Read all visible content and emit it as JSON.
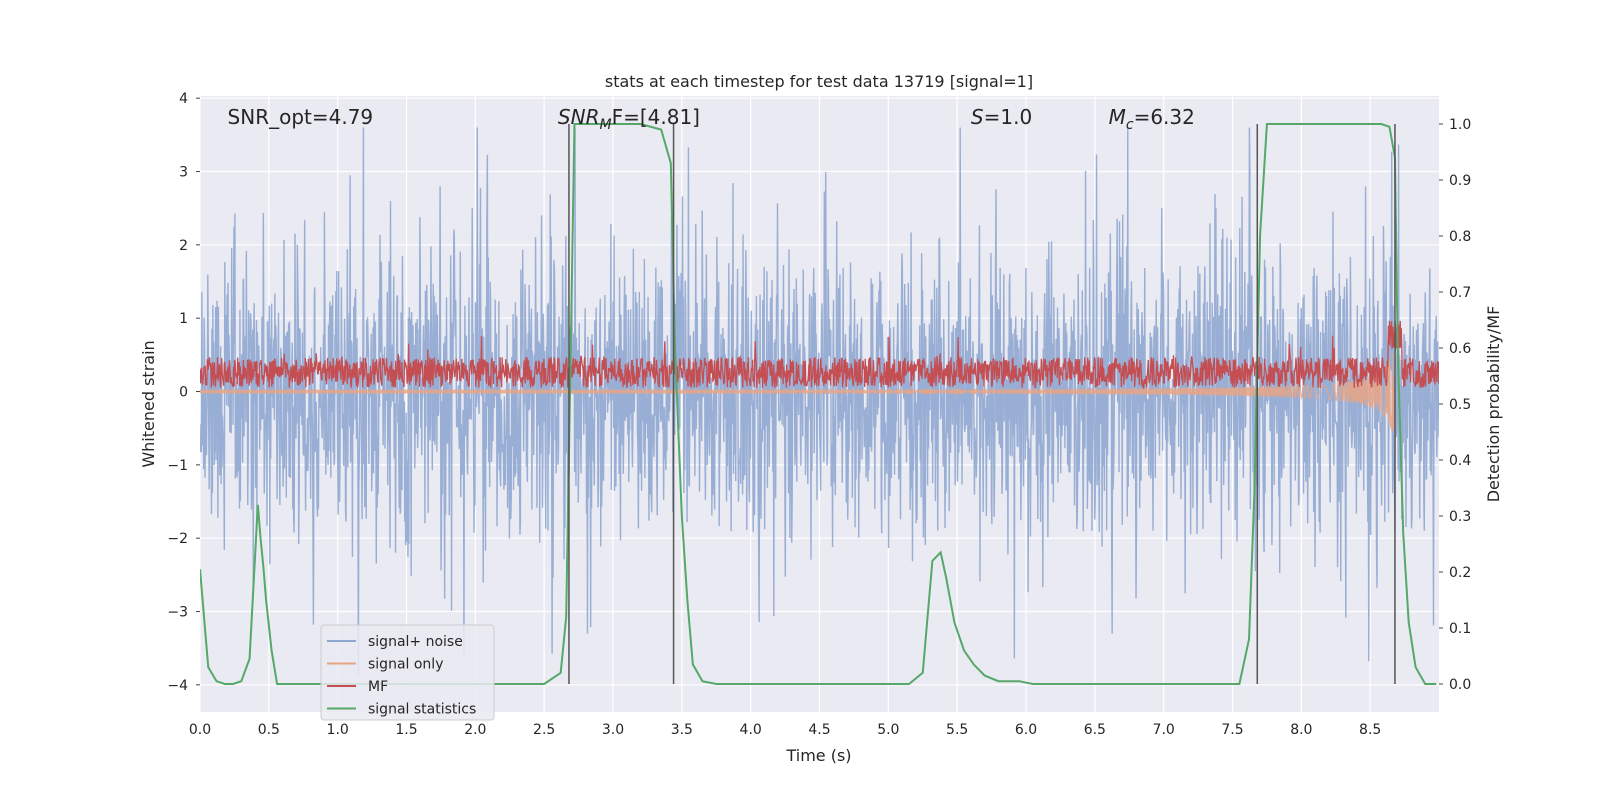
{
  "chart_data": {
    "type": "line",
    "title": "stats at each timestep for test data 13719 [signal=1]",
    "xlabel": "Time (s)",
    "ylabel_left": "Whitened strain",
    "ylabel_right": "Detection probability/MF",
    "xlim": [
      0.0,
      9.0
    ],
    "ylim_left": [
      -4.37,
      4.03
    ],
    "ylim_right": [
      -0.05,
      1.05
    ],
    "x_ticks": [
      "0.0",
      "0.5",
      "1.0",
      "1.5",
      "2.0",
      "2.5",
      "3.0",
      "3.5",
      "4.0",
      "4.5",
      "5.0",
      "5.5",
      "6.0",
      "6.5",
      "7.0",
      "7.5",
      "8.0",
      "8.5"
    ],
    "x_tick_values": [
      0.0,
      0.5,
      1.0,
      1.5,
      2.0,
      2.5,
      3.0,
      3.5,
      4.0,
      4.5,
      5.0,
      5.5,
      6.0,
      6.5,
      7.0,
      7.5,
      8.0,
      8.5
    ],
    "y_left_ticks": [
      "4",
      "3",
      "2",
      "1",
      "0",
      "−1",
      "−2",
      "−3",
      "−4"
    ],
    "y_left_tick_values": [
      4,
      3,
      2,
      1,
      0,
      -1,
      -2,
      -3,
      -4
    ],
    "y_right_ticks": [
      "1.0",
      "0.9",
      "0.8",
      "0.7",
      "0.6",
      "0.5",
      "0.4",
      "0.3",
      "0.2",
      "0.1",
      "0.0"
    ],
    "y_right_tick_values": [
      1.0,
      0.9,
      0.8,
      0.7,
      0.6,
      0.5,
      0.4,
      0.3,
      0.2,
      0.1,
      0.0
    ],
    "grid": true,
    "legend_position": "lower-left",
    "annotations": [
      {
        "base": "SNR_opt=4.79",
        "sub": "",
        "rest": "",
        "italic": false,
        "x": 0.2
      },
      {
        "base": "SNR",
        "sub": "M",
        "rest": "F=[4.81]",
        "italic": true,
        "x": 2.6
      },
      {
        "base": "S",
        "sub": "",
        "rest": "=1.0",
        "italic": true,
        "x": 5.6
      },
      {
        "base": "M",
        "sub": "c",
        "rest": "=6.32",
        "italic": true,
        "x": 6.6
      }
    ],
    "series": [
      {
        "name": "signal+ noise",
        "color": "#8fa7d0",
        "kind": "noise",
        "approx_range": [
          -4.0,
          3.6
        ]
      },
      {
        "name": "signal only",
        "color": "#e8a585",
        "kind": "chirp",
        "max_amplitude": 0.55,
        "merger_time": 8.68
      },
      {
        "name": "MF",
        "color": "#c44e52",
        "kind": "mf",
        "approx_range": [
          0.0,
          0.85
        ]
      },
      {
        "name": "signal statistics",
        "color": "#55a868",
        "kind": "line_right",
        "x": [
          0.0,
          0.06,
          0.12,
          0.18,
          0.24,
          0.3,
          0.36,
          0.42,
          0.44,
          0.46,
          0.48,
          0.52,
          0.56,
          0.6,
          0.7,
          0.9,
          1.5,
          2.0,
          2.5,
          2.62,
          2.66,
          2.7,
          2.72,
          2.74,
          2.78,
          3.2,
          3.35,
          3.42,
          3.45,
          3.5,
          3.54,
          3.58,
          3.65,
          3.75,
          4.0,
          4.5,
          5.0,
          5.15,
          5.25,
          5.32,
          5.38,
          5.42,
          5.48,
          5.55,
          5.62,
          5.7,
          5.8,
          5.95,
          6.05,
          6.5,
          7.0,
          7.55,
          7.62,
          7.66,
          7.7,
          7.75,
          7.8,
          8.0,
          8.4,
          8.58,
          8.64,
          8.68,
          8.7,
          8.74,
          8.78,
          8.83,
          8.9,
          8.98
        ],
        "y": [
          0.205,
          0.03,
          0.005,
          0.0,
          0.0,
          0.005,
          0.045,
          0.32,
          0.26,
          0.21,
          0.15,
          0.06,
          0.0,
          0.0,
          0.0,
          0.0,
          0.0,
          0.0,
          0.0,
          0.02,
          0.12,
          0.7,
          1.0,
          1.0,
          1.0,
          1.0,
          0.99,
          0.93,
          0.6,
          0.3,
          0.15,
          0.035,
          0.005,
          0.0,
          0.0,
          0.0,
          0.0,
          0.0,
          0.02,
          0.22,
          0.235,
          0.19,
          0.11,
          0.06,
          0.035,
          0.015,
          0.005,
          0.005,
          0.0,
          0.0,
          0.0,
          0.0,
          0.08,
          0.35,
          0.8,
          1.0,
          1.0,
          1.0,
          1.0,
          1.0,
          0.995,
          0.94,
          0.6,
          0.27,
          0.11,
          0.03,
          0.0,
          0.0
        ]
      }
    ],
    "vertical_markers": [
      {
        "x": 2.68,
        "y_top": 1.0,
        "y_bottom": 0.0
      },
      {
        "x": 3.44,
        "y_top": 1.0,
        "y_bottom": 0.0
      },
      {
        "x": 7.68,
        "y_top": 1.0,
        "y_bottom": 0.0
      },
      {
        "x": 8.68,
        "y_top": 1.0,
        "y_bottom": 0.0
      }
    ]
  }
}
